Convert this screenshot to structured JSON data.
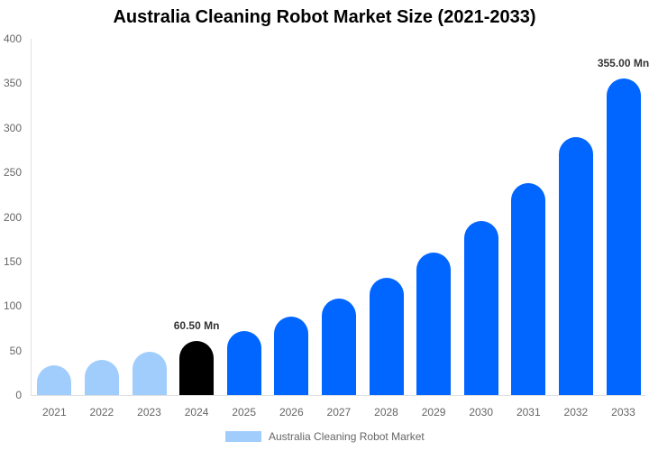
{
  "chart_data": {
    "type": "bar",
    "title": "Australia Cleaning Robot Market Size (2021-2033)",
    "xlabel": "",
    "ylabel": "",
    "ylim": [
      0,
      400
    ],
    "yticks": [
      0,
      50,
      100,
      150,
      200,
      250,
      300,
      350,
      400
    ],
    "grid": false,
    "legend_position": "bottom",
    "categories": [
      "2021",
      "2022",
      "2023",
      "2024",
      "2025",
      "2026",
      "2027",
      "2028",
      "2029",
      "2030",
      "2031",
      "2032",
      "2033"
    ],
    "series": [
      {
        "name": "Australia Cleaning Robot Market",
        "values": [
          33,
          39.5,
          48.6,
          60.5,
          72,
          88,
          108,
          132,
          160,
          195,
          238,
          290,
          355
        ],
        "colors": [
          "#a1cdfd",
          "#a1cdfd",
          "#a1cdfd",
          "#000000",
          "#0066ff",
          "#0066ff",
          "#0066ff",
          "#0066ff",
          "#0066ff",
          "#0066ff",
          "#0066ff",
          "#0066ff",
          "#0066ff"
        ]
      }
    ],
    "annotations": [
      {
        "category": "2024",
        "text": "60.50 Mn"
      },
      {
        "category": "2033",
        "text": "355.00 Mn"
      }
    ]
  },
  "title": "Australia Cleaning Robot Market Size (2021-2033)",
  "legend": {
    "label": "Australia Cleaning Robot Market",
    "color": "#a1cdfd"
  }
}
